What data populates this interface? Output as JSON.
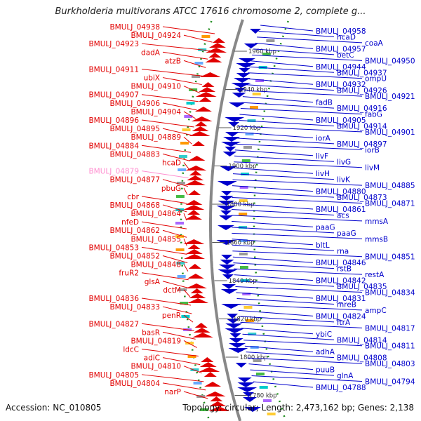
{
  "title": "Burkholderia multivorans ATCC 17616 chromosome 2, complete g...",
  "footer": {
    "accession": "Accession: NC_010805",
    "topology": "Topology: circular; Length: 2,473,162 bp; Genes: 2,138"
  },
  "colors": {
    "forward": "#e10000",
    "reverse": "#0000cc",
    "highlight": "#ff8fd0",
    "backbone": "#888888",
    "dots": "#1a8a1a"
  },
  "ticks": [
    "1960 kbp",
    "1940 kbp",
    "1920 kbp",
    "1900 kbp",
    "1880 kbp",
    "1860 kbp",
    "1840 kbp",
    "1820 kbp",
    "1800 kbp",
    "1780 kbp"
  ],
  "left_labels": [
    "BMULJ_04938",
    "BMULJ_04924",
    "BMULJ_04923",
    "dadA",
    "atzB",
    "BMULJ_04911",
    "ubiX",
    "BMULJ_04910",
    "BMULJ_04907",
    "BMULJ_04906",
    "BMULJ_04904",
    "BMULJ_04896",
    "BMULJ_04895",
    "BMULJ_04889",
    "BMULJ_04884",
    "BMULJ_04883",
    "hcaD",
    "BMULJ_04879",
    "BMULJ_04877",
    "pbuG",
    "cbr",
    "BMULJ_04868",
    "BMULJ_04864",
    "nfeD",
    "BMULJ_04862",
    "BMULJ_04855",
    "BMULJ_04853",
    "BMULJ_04852",
    "BMULJ_04848",
    "fruR2",
    "glsA",
    "dctM",
    "BMULJ_04836",
    "BMULJ_04833",
    "penR",
    "BMULJ_04827",
    "basR",
    "BMULJ_04819",
    "ldcC",
    "adiC",
    "BMULJ_04810",
    "BMULJ_04805",
    "BMULJ_04804",
    "narP"
  ],
  "right_labels": [
    "BMULJ_04958",
    "hcaD",
    "coaA",
    "BMULJ_04957",
    "betC",
    "BMULJ_04950",
    "BMULJ_04944",
    "BMULJ_04937",
    "ompU",
    "BMULJ_04932",
    "BMULJ_04926",
    "BMULJ_04921",
    "fadB",
    "BMULJ_04916",
    "fabG",
    "BMULJ_04905",
    "BMULJ_04914",
    "BMULJ_04901",
    "iorA",
    "BMULJ_04897",
    "iorB",
    "livF",
    "livG",
    "livM",
    "livH",
    "livK",
    "BMULJ_04885",
    "BMULJ_04880",
    "BMULJ_04873",
    "BMULJ_04871",
    "BMULJ_04861",
    "acs",
    "mmsA",
    "paaG",
    "paaG",
    "mmsB",
    "bltL",
    "rna",
    "BMULJ_04851",
    "BMULJ_04846",
    "rstB",
    "restA",
    "BMULJ_04842",
    "BMULJ_04835",
    "BMULJ_04834",
    "BMULJ_04831",
    "mreB",
    "ampC",
    "BMULJ_04824",
    "ftrA",
    "BMULJ_04817",
    "ybiC",
    "BMULJ_04814",
    "BMULJ_04811",
    "adhA",
    "BMULJ_04808",
    "BMULJ_04803",
    "puuB",
    "glnA",
    "BMULJ_04794",
    "BMULJ_04788"
  ]
}
